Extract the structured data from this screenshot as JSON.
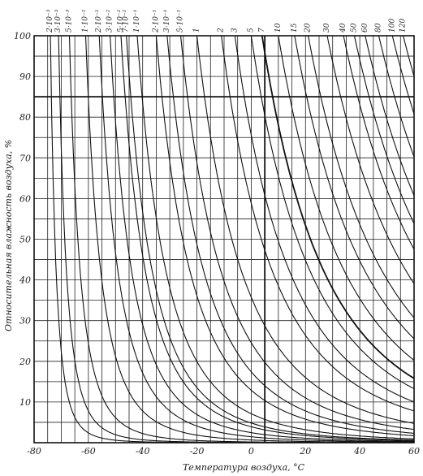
{
  "chart_data": {
    "type": "line",
    "title": "",
    "xlabel": "Температура воздуха, °С",
    "ylabel": "Относительная влажность воздуха, %",
    "xlim": [
      -80,
      60
    ],
    "ylim": [
      0,
      100
    ],
    "x_ticks": [
      -80,
      -60,
      -40,
      -20,
      0,
      20,
      40,
      60
    ],
    "x_tick_labels": [
      "-80",
      "-60",
      "-40",
      "-20",
      "0",
      "20",
      "40",
      "60"
    ],
    "y_ticks": [
      10,
      20,
      30,
      40,
      50,
      60,
      70,
      80,
      90,
      100
    ],
    "y_tick_labels": [
      "10",
      "20",
      "30",
      "40",
      "50",
      "60",
      "70",
      "80",
      "90",
      "100"
    ],
    "grid": true,
    "grid_x_step": 5,
    "grid_y_step": 5,
    "series": [
      {
        "name": "2·10⁻³",
        "x100": -74
      },
      {
        "name": "3·10⁻³",
        "x100": -71
      },
      {
        "name": "5·10⁻³",
        "x100": -67
      },
      {
        "name": "1·10⁻²",
        "x100": -61
      },
      {
        "name": "2·10⁻²",
        "x100": -56
      },
      {
        "name": "3·10⁻²",
        "x100": -52
      },
      {
        "name": "5·10⁻²",
        "x100": -48
      },
      {
        "name": "7·10⁻²",
        "x100": -46
      },
      {
        "name": "1·10⁻¹",
        "x100": -42
      },
      {
        "name": "2·10⁻¹",
        "x100": -35
      },
      {
        "name": "3·10⁻¹",
        "x100": -31
      },
      {
        "name": "5·10⁻¹",
        "x100": -26
      },
      {
        "name": "1",
        "x100": -20
      },
      {
        "name": "2",
        "x100": -11
      },
      {
        "name": "3",
        "x100": -6
      },
      {
        "name": "5",
        "x100": 0
      },
      {
        "name": "7",
        "x100": 4
      },
      {
        "name": "10",
        "x100": 10
      },
      {
        "name": "15",
        "x100": 16
      },
      {
        "name": "20",
        "x100": 21
      },
      {
        "name": "30",
        "x100": 28
      },
      {
        "name": "40",
        "x100": 34
      },
      {
        "name": "50",
        "x100": 38
      },
      {
        "name": "60",
        "x100": 42
      },
      {
        "name": "80",
        "x100": 47
      },
      {
        "name": "100",
        "x100": 52
      },
      {
        "name": "120",
        "x100": 56
      }
    ]
  }
}
